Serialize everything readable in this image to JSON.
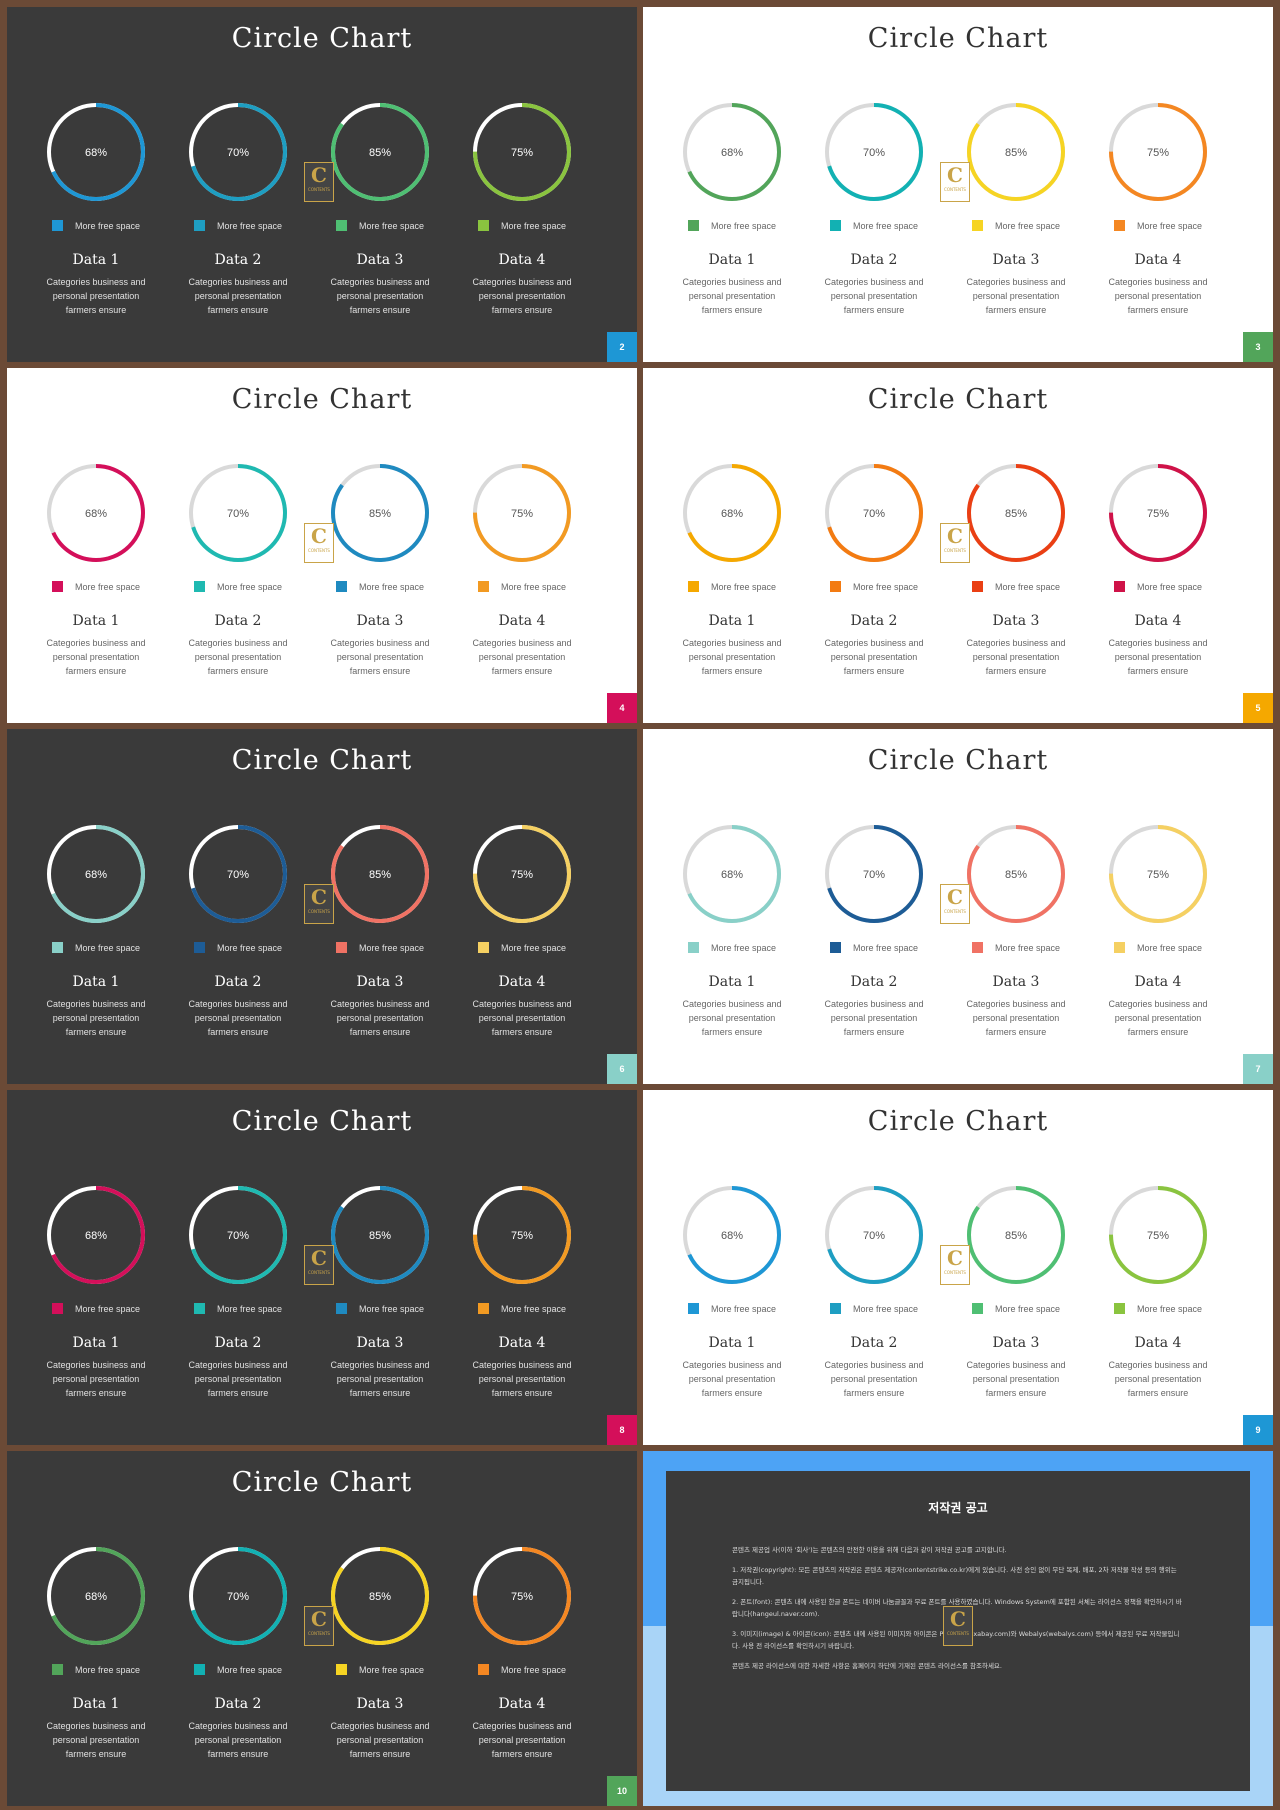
{
  "legend_label": "More free space",
  "items": [
    {
      "name": "Data 1",
      "percent": "68%",
      "value": 68,
      "desc": [
        "Categories business and",
        "personal presentation",
        "farmers ensure"
      ]
    },
    {
      "name": "Data 2",
      "percent": "70%",
      "value": 70,
      "desc": [
        "Categories business and",
        "personal presentation",
        "farmers ensure"
      ]
    },
    {
      "name": "Data 3",
      "percent": "85%",
      "value": 85,
      "desc": [
        "Categories business and",
        "personal presentation",
        "farmers ensure"
      ]
    },
    {
      "name": "Data 4",
      "percent": "75%",
      "value": 75,
      "desc": [
        "Categories business and",
        "personal presentation",
        "farmers ensure"
      ]
    }
  ],
  "logo": {
    "letter": "C",
    "text": "CONTENTS"
  },
  "slides": [
    {
      "title": "Circle Chart",
      "theme": "dark",
      "page": "2",
      "page_color": "#1e97d5",
      "colors": [
        "#1e97d5",
        "#1e9ec2",
        "#4fbf73",
        "#8ac43f"
      ]
    },
    {
      "title": "Circle Chart",
      "theme": "light",
      "page": "3",
      "page_color": "#52a55a",
      "colors": [
        "#52a55a",
        "#12b1b3",
        "#f6d423",
        "#f48722"
      ]
    },
    {
      "title": "Circle Chart",
      "theme": "light",
      "page": "4",
      "page_color": "#d40f5a",
      "colors": [
        "#d40f5a",
        "#1fb9b1",
        "#1f8ac0",
        "#f29a22"
      ]
    },
    {
      "title": "Circle Chart",
      "theme": "light",
      "page": "5",
      "page_color": "#f5a800",
      "colors": [
        "#f5a800",
        "#f37b12",
        "#ea3f14",
        "#cf1248"
      ]
    },
    {
      "title": "Circle Chart",
      "theme": "dark",
      "page": "6",
      "page_color": "#89d0c8",
      "colors": [
        "#89d0c8",
        "#1d5c96",
        "#f07264",
        "#f5d062"
      ]
    },
    {
      "title": "Circle Chart",
      "theme": "light",
      "page": "7",
      "page_color": "#89d0c8",
      "colors": [
        "#89d0c8",
        "#1d5c96",
        "#f07264",
        "#f5d062"
      ]
    },
    {
      "title": "Circle Chart",
      "theme": "dark",
      "page": "8",
      "page_color": "#d40f5a",
      "colors": [
        "#d40f5a",
        "#1fb9b1",
        "#1f8ac0",
        "#f29a22"
      ]
    },
    {
      "title": "Circle Chart",
      "theme": "light",
      "page": "9",
      "page_color": "#1e97d5",
      "colors": [
        "#1e97d5",
        "#1e9ec2",
        "#4fbf73",
        "#8ac43f"
      ]
    },
    {
      "title": "Circle Chart",
      "theme": "dark",
      "page": "10",
      "page_color": "#52a55a",
      "colors": [
        "#52a55a",
        "#12b1b3",
        "#f6d423",
        "#f48722"
      ]
    }
  ],
  "notice": {
    "title": "저작권 공고",
    "paragraphs": [
      "콘텐츠 제공업 사(이하 '회사')는 콘텐츠의 안전한 이용을 위해 다음과 같이 저작권 공고를 고지합니다.",
      "1. 저작권(copyright): 모든 콘텐츠의 저작권은 콘텐츠 제공자(contentstrike.co.kr)에게 있습니다. 사전 승인 없이 무단 복제, 배포, 2차 저작물 작성 등의 행위는 금지됩니다.",
      "2. 폰트(font): 콘텐츠 내에 사용된 한글 폰트는 네이버 나눔글꼴과 무료 폰트를 사용하였습니다. Windows System에 포함된 서체는 라이선스 정책을 확인하시기 바랍니다(hangeul.naver.com).",
      "3. 이미지(image) & 아이콘(icon): 콘텐츠 내에 사용된 이미지와 아이콘은 Pixabay(pixabay.com)와 Webalys(webalys.com) 등에서 제공된 무료 저작물입니다. 사용 전 라이선스를 확인하시기 바랍니다.",
      "콘텐츠 제공 라이선스에 대한 자세한 사항은 홈페이지 하단에 기재된 콘텐츠 라이선스를 참조하세요."
    ]
  }
}
